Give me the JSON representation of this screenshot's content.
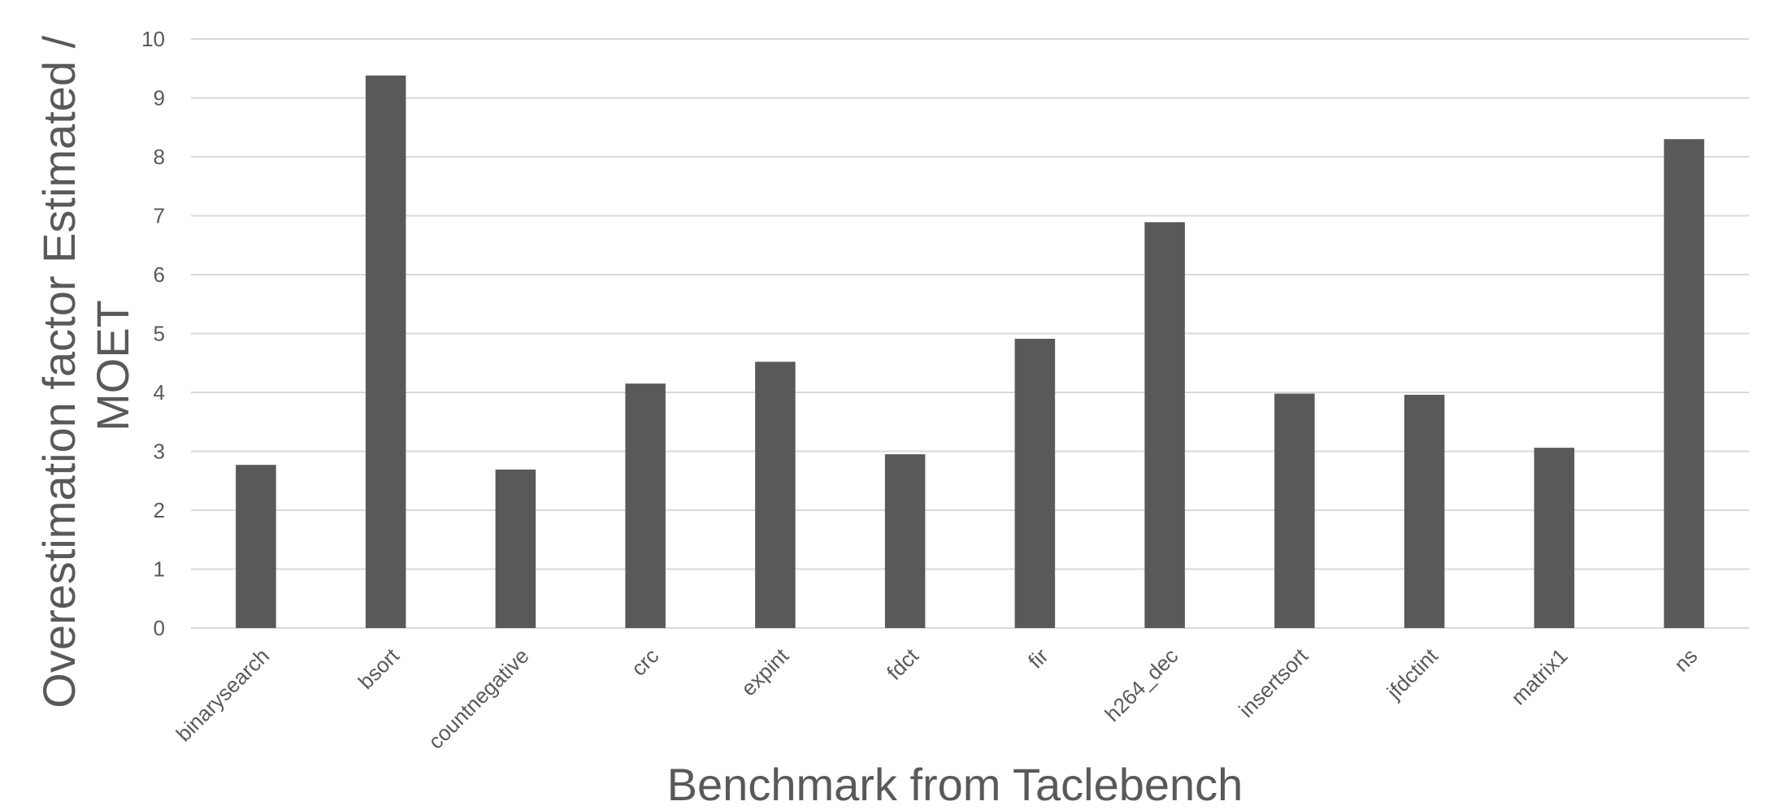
{
  "chart_data": {
    "type": "bar",
    "title": "",
    "xlabel": "Benchmark from Taclebench",
    "ylabel_lines": [
      "Overestimation factor  Estimated /",
      "MOET"
    ],
    "categories": [
      "binarysearch",
      "bsort",
      "countnegative",
      "crc",
      "expint",
      "fdct",
      "fir",
      "h264_dec",
      "insertsort",
      "jfdctint",
      "matrix1",
      "ns"
    ],
    "values": [
      2.77,
      9.38,
      2.69,
      4.15,
      4.52,
      2.95,
      4.91,
      6.89,
      3.98,
      3.96,
      3.06,
      8.3
    ],
    "ylim": [
      0,
      10
    ],
    "yticks": [
      0,
      1,
      2,
      3,
      4,
      5,
      6,
      7,
      8,
      9,
      10
    ],
    "grid": true,
    "legend": "none",
    "bar_color": "#595959",
    "grid_color": "#d9d9d9",
    "text_color": "#595959"
  }
}
